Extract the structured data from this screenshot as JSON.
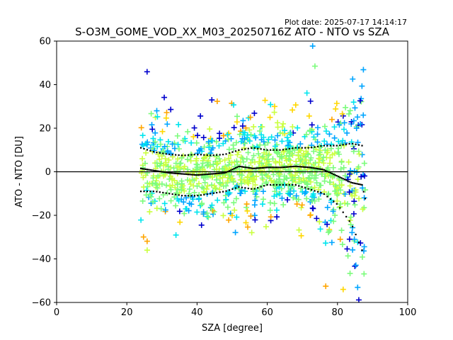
{
  "plot_date": "Plot date: 2025-07-17 14:14:17",
  "chart_data": {
    "type": "scatter",
    "title": "S-O3M_GOME_VOD_XX_M03_20250716Z ATO - NTO vs SZA",
    "xlabel": "SZA [degree]",
    "ylabel": "ATO - NTO [DU]",
    "xlim": [
      0,
      100
    ],
    "ylim": [
      -60,
      60
    ],
    "xticks": [
      0,
      20,
      40,
      60,
      80,
      100
    ],
    "yticks": [
      -60,
      -40,
      -20,
      0,
      20,
      40,
      60
    ],
    "xtick_labels": [
      "0",
      "20",
      "40",
      "60",
      "80",
      "100"
    ],
    "ytick_labels": [
      "−60",
      "−40",
      "−20",
      "0",
      "20",
      "40",
      "60"
    ],
    "grid": false,
    "reference_line_y": 0,
    "scatter_sza_range": [
      24,
      88
    ],
    "colormap": [
      "#0000cd",
      "#00a5ff",
      "#00e5ee",
      "#7cfc7c",
      "#caff40",
      "#ffd700",
      "#ffa500"
    ],
    "mean_curve": {
      "x": [
        24,
        28,
        32,
        36,
        40,
        44,
        48,
        52,
        56,
        60,
        64,
        68,
        72,
        76,
        80,
        84,
        87,
        88
      ],
      "y": [
        1.5,
        0.5,
        -0.5,
        -1,
        -1.5,
        -1,
        -0.5,
        2.5,
        1.5,
        2,
        2,
        2.5,
        2,
        1,
        -2,
        -5,
        -6,
        -13
      ]
    },
    "std_upper_curve": {
      "x": [
        24,
        28,
        32,
        36,
        40,
        44,
        48,
        52,
        56,
        60,
        64,
        68,
        72,
        76,
        80,
        84,
        87
      ],
      "y": [
        11,
        9,
        8,
        7.5,
        8,
        7.5,
        8,
        10,
        11,
        10,
        10,
        11,
        11,
        12,
        12,
        13,
        12
      ]
    },
    "std_lower_curve": {
      "x": [
        24,
        28,
        32,
        36,
        40,
        44,
        48,
        52,
        56,
        60,
        64,
        68,
        72,
        76,
        80,
        84,
        87
      ],
      "y": [
        -9,
        -9,
        -10,
        -11,
        -11,
        -10,
        -9,
        -7,
        -8,
        -6,
        -6,
        -6,
        -8,
        -10,
        -15,
        -24,
        -36
      ]
    }
  }
}
